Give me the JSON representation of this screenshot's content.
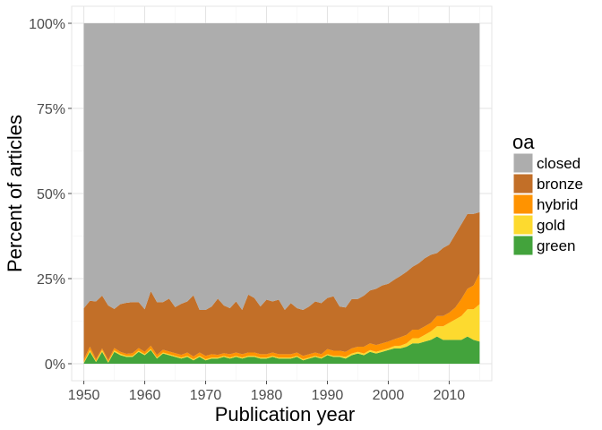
{
  "chart_data": {
    "type": "area",
    "stacked": true,
    "title": "",
    "xlabel": "Publication year",
    "ylabel": "Percent of articles",
    "xlim": [
      1948,
      2017
    ],
    "ylim": [
      -5,
      105
    ],
    "x_ticks": [
      1950,
      1960,
      1970,
      1980,
      1990,
      2000,
      2010
    ],
    "y_ticks": [
      0,
      25,
      50,
      75,
      100
    ],
    "y_tick_labels": [
      "0%",
      "25%",
      "50%",
      "75%",
      "100%"
    ],
    "grid": true,
    "legend": {
      "title": "oa",
      "position": "right",
      "items": [
        {
          "key": "closed",
          "label": "closed",
          "color": "#ADADAD"
        },
        {
          "key": "bronze",
          "label": "bronze",
          "color": "#C26F28"
        },
        {
          "key": "hybrid",
          "label": "hybrid",
          "color": "#FF9300"
        },
        {
          "key": "gold",
          "label": "gold",
          "color": "#FDDA2F"
        },
        {
          "key": "green",
          "label": "green",
          "color": "#43A33C"
        }
      ]
    },
    "x": [
      1950,
      1951,
      1952,
      1953,
      1954,
      1955,
      1956,
      1957,
      1958,
      1959,
      1960,
      1961,
      1962,
      1963,
      1964,
      1965,
      1966,
      1967,
      1968,
      1969,
      1970,
      1971,
      1972,
      1973,
      1974,
      1975,
      1976,
      1977,
      1978,
      1979,
      1980,
      1981,
      1982,
      1983,
      1984,
      1985,
      1986,
      1987,
      1988,
      1989,
      1990,
      1991,
      1992,
      1993,
      1994,
      1995,
      1996,
      1997,
      1998,
      1999,
      2000,
      2001,
      2002,
      2003,
      2004,
      2005,
      2006,
      2007,
      2008,
      2009,
      2010,
      2011,
      2012,
      2013,
      2014,
      2015
    ],
    "series": [
      {
        "name": "green",
        "values": [
          0.2,
          3.5,
          0.5,
          3.5,
          0.3,
          3.5,
          2.5,
          2,
          2,
          3.5,
          2.5,
          4,
          1.5,
          3,
          2.5,
          2,
          1.5,
          2,
          1,
          2,
          1,
          1.5,
          1.5,
          2,
          1.5,
          2,
          1.5,
          2,
          2,
          1.5,
          1.5,
          2,
          1.5,
          1.5,
          1.5,
          2,
          1,
          1.5,
          2,
          1.5,
          2.5,
          2,
          2,
          1.5,
          2.5,
          3,
          2.5,
          3.5,
          3,
          3.5,
          4,
          4.5,
          4.5,
          5,
          6,
          6,
          6.5,
          7,
          8,
          7,
          7,
          7,
          7,
          8,
          7,
          6.5
        ]
      },
      {
        "name": "gold",
        "values": [
          0.3,
          0.5,
          0.3,
          0.5,
          0.3,
          0.4,
          0.4,
          0.3,
          0.3,
          0.3,
          0.3,
          0.3,
          0.3,
          0.3,
          0.3,
          0.3,
          0.3,
          0.3,
          0.3,
          0.3,
          0.3,
          0.3,
          0.3,
          0.3,
          0.3,
          0.3,
          0.3,
          0.3,
          0.3,
          0.3,
          0.3,
          0.3,
          0.3,
          0.3,
          0.3,
          0.3,
          0.3,
          0.3,
          0.3,
          0.3,
          0.3,
          0.3,
          0.3,
          0.5,
          0.5,
          0.5,
          0.5,
          0.5,
          0.5,
          0.5,
          0.5,
          0.7,
          0.8,
          1,
          1.5,
          1.5,
          2,
          2.5,
          3,
          4,
          5,
          6,
          7,
          8,
          9,
          11
        ]
      },
      {
        "name": "hybrid",
        "values": [
          0.8,
          1,
          0.5,
          0.5,
          0.5,
          0.7,
          0.6,
          0.6,
          0.8,
          0.8,
          0.7,
          1,
          0.8,
          0.8,
          0.8,
          0.8,
          0.8,
          1,
          0.8,
          1,
          1,
          1,
          0.8,
          0.8,
          1,
          1,
          1,
          1,
          1,
          1,
          1,
          1,
          1,
          1,
          1,
          1,
          1,
          1,
          1,
          1,
          1.5,
          1.5,
          1.5,
          1.5,
          1.5,
          1.5,
          2,
          2,
          2,
          2,
          2,
          2,
          2.5,
          2.5,
          2.5,
          2.5,
          2.5,
          2.5,
          3,
          3,
          3,
          3.5,
          5,
          6,
          7,
          9
        ]
      },
      {
        "name": "bronze",
        "values": [
          15,
          13.5,
          17,
          15.5,
          16,
          11.5,
          14,
          15,
          15,
          13.5,
          12.5,
          16,
          15.5,
          14,
          15.5,
          13.5,
          15,
          15,
          18,
          12.5,
          13.5,
          14,
          16.5,
          14,
          13.5,
          15,
          13,
          17,
          16,
          14,
          16,
          15,
          16,
          13,
          15,
          13,
          13.5,
          14,
          15,
          15,
          15,
          16,
          13,
          13,
          14.5,
          14,
          15,
          15.5,
          16.5,
          17,
          17,
          17.5,
          18,
          18.5,
          18.5,
          19.5,
          20,
          20,
          18.5,
          20,
          20,
          21.5,
          22,
          22,
          21,
          18
        ]
      },
      {
        "name": "closed",
        "values": [
          83.7,
          81.5,
          81.7,
          80,
          82.9,
          83.9,
          82.5,
          82.1,
          81.9,
          81.9,
          84,
          78.7,
          81.9,
          81.9,
          80.9,
          83.4,
          82.4,
          81.7,
          79.9,
          84.2,
          84.2,
          83.2,
          80.9,
          82.9,
          83.7,
          81.7,
          84.2,
          79.7,
          80.7,
          83.2,
          81.2,
          81.7,
          81.2,
          84.2,
          82.2,
          83.7,
          84.2,
          83.2,
          81.7,
          82.2,
          80.7,
          80.2,
          83.2,
          83.5,
          81,
          81,
          80,
          78.5,
          78,
          77,
          76.5,
          75.3,
          74.2,
          73,
          71.5,
          70.5,
          69,
          68,
          67.5,
          66,
          65,
          62,
          59,
          56,
          56,
          55.5
        ]
      }
    ]
  }
}
